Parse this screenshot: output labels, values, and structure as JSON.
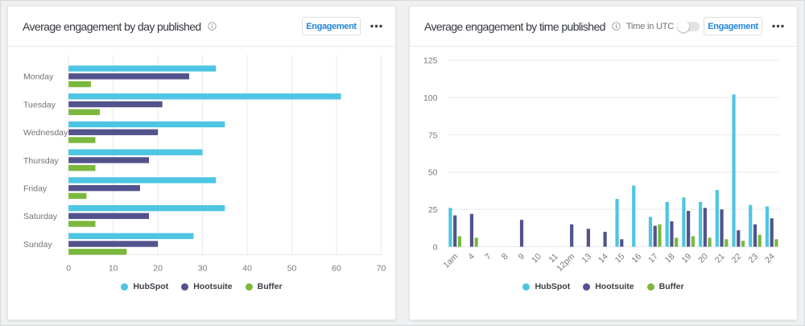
{
  "colors": {
    "accent_blue": "#2386db",
    "hubspot_cyan": "#4dc5e3",
    "hootsuite_indigo": "#52538d",
    "buffer_green": "#7ab83d"
  },
  "cards": [
    {
      "title": "Average engagement by day published",
      "action_label": "Engagement",
      "chart_data": {
        "type": "bar",
        "orientation": "horizontal",
        "title": "Average engagement by day published",
        "categories": [
          "Monday",
          "Tuesday",
          "Wednesday",
          "Thursday",
          "Friday",
          "Saturday",
          "Sunday"
        ],
        "series": [
          {
            "name": "HubSpot",
            "color": "#4dc5e3",
            "values": [
              33,
              61,
              35,
              30,
              33,
              35,
              28
            ]
          },
          {
            "name": "Hootsuite",
            "color": "#52538d",
            "values": [
              27,
              21,
              20,
              18,
              16,
              18,
              20
            ]
          },
          {
            "name": "Buffer",
            "color": "#7ab83d",
            "values": [
              5,
              7,
              6,
              6,
              4,
              6,
              13
            ]
          }
        ],
        "xlim": [
          0,
          70
        ],
        "xticks": [
          0,
          10,
          20,
          30,
          40,
          50,
          60,
          70
        ],
        "grid": "vertical",
        "legend_position": "bottom"
      }
    },
    {
      "title": "Average engagement by time published",
      "utc_label": "Time in UTC",
      "utc_toggle": "off",
      "action_label": "Engagement",
      "chart_data": {
        "type": "bar",
        "orientation": "vertical",
        "title": "Average engagement by time published",
        "categories": [
          "1am",
          "4",
          "7",
          "8",
          "9",
          "10",
          "11",
          "12pm",
          "13",
          "14",
          "15",
          "16",
          "17",
          "18",
          "19",
          "20",
          "21",
          "22",
          "23",
          "24"
        ],
        "series": [
          {
            "name": "HubSpot",
            "color": "#4dc5e3",
            "values": [
              26,
              0,
              0,
              0,
              0,
              0,
              0,
              0,
              0,
              0,
              32,
              41,
              20,
              30,
              33,
              30,
              38,
              102,
              28,
              27
            ]
          },
          {
            "name": "Hootsuite",
            "color": "#52538d",
            "values": [
              21,
              22,
              0,
              0,
              18,
              0,
              0,
              15,
              12,
              10,
              5,
              0,
              14,
              17,
              24,
              26,
              25,
              11,
              15,
              19
            ]
          },
          {
            "name": "Buffer",
            "color": "#7ab83d",
            "values": [
              7,
              6,
              0,
              0,
              0,
              0,
              0,
              0,
              0,
              0,
              0,
              0,
              15,
              6,
              7,
              6,
              5,
              4,
              8,
              5
            ]
          }
        ],
        "ylim": [
          0,
          125
        ],
        "yticks": [
          0,
          25,
          50,
          75,
          100,
          125
        ],
        "grid": "horizontal",
        "legend_position": "bottom"
      }
    }
  ]
}
